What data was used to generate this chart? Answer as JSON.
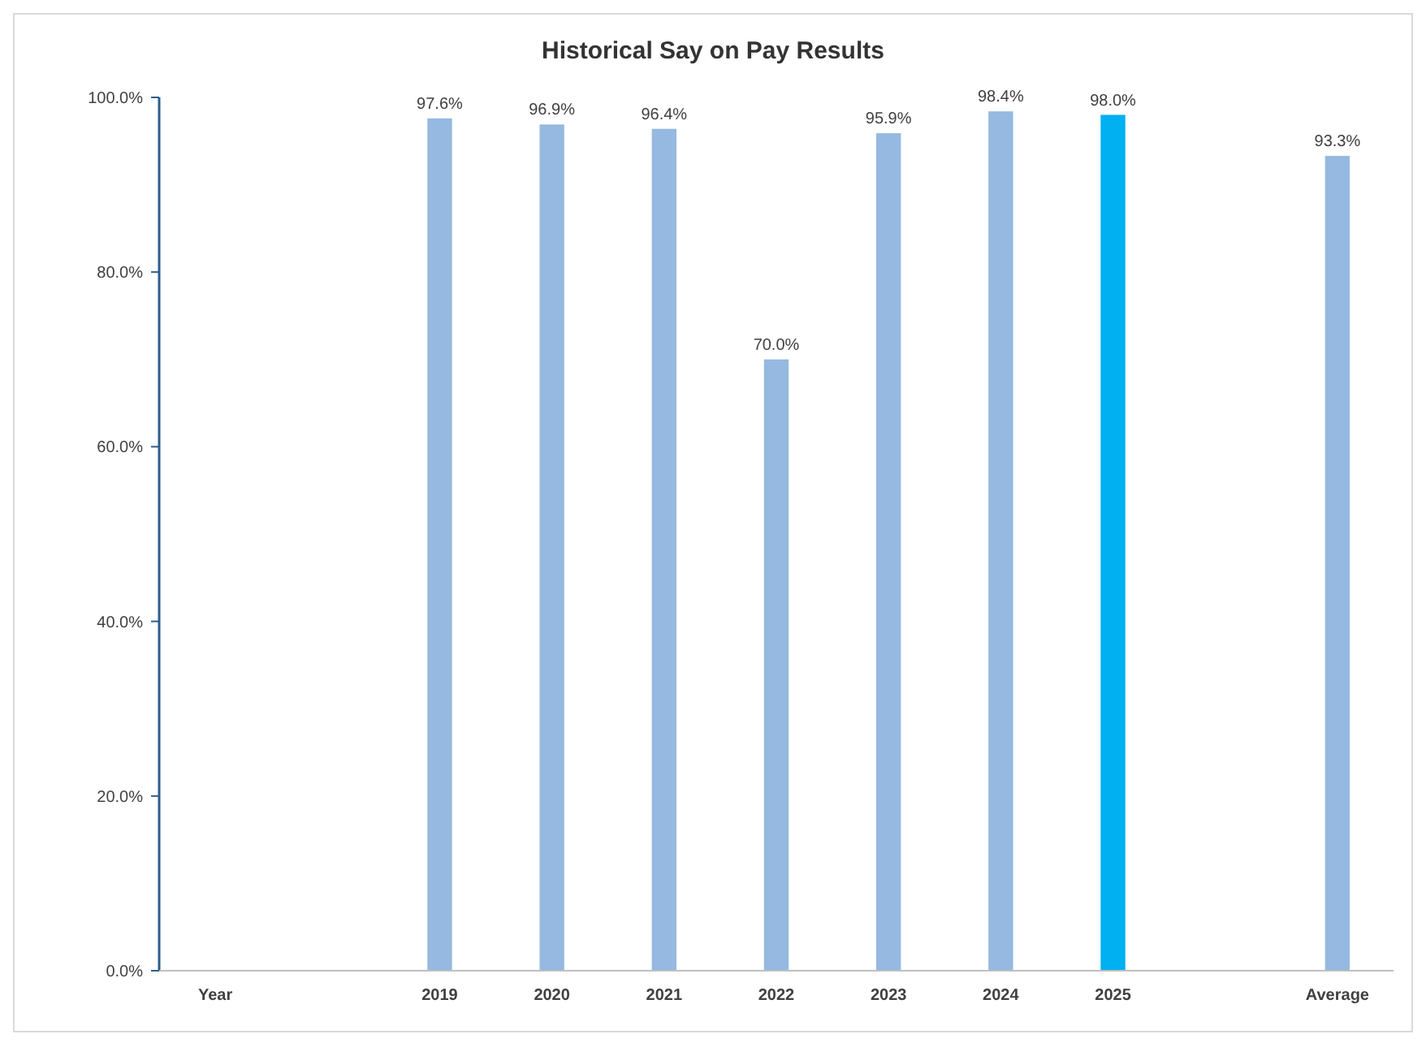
{
  "chart_data": {
    "type": "bar",
    "title": "Historical Say on Pay Results",
    "categories": [
      "Year",
      null,
      "2019",
      "2020",
      "2021",
      "2022",
      "2023",
      "2024",
      "2025",
      null,
      "Average"
    ],
    "values": [
      null,
      null,
      97.6,
      96.9,
      96.4,
      70.0,
      95.9,
      98.4,
      98.0,
      null,
      93.3
    ],
    "colors": [
      null,
      null,
      "#95b9e0",
      "#95b9e0",
      "#95b9e0",
      "#95b9e0",
      "#95b9e0",
      "#95b9e0",
      "#00b0f0",
      null,
      "#95b9e0"
    ],
    "value_labels": [
      null,
      null,
      "97.6%",
      "96.9%",
      "96.4%",
      "70.0%",
      "95.9%",
      "98.4%",
      "98.0%",
      null,
      "93.3%"
    ],
    "ylim": [
      0,
      100
    ],
    "yticks": [
      {
        "value": 0,
        "label": "0.0%"
      },
      {
        "value": 20,
        "label": "20.0%"
      },
      {
        "value": 40,
        "label": "40.0%"
      },
      {
        "value": 60,
        "label": "60.0%"
      },
      {
        "value": 80,
        "label": "80.0%"
      },
      {
        "value": 100,
        "label": "100.0%"
      }
    ],
    "grid": false
  }
}
